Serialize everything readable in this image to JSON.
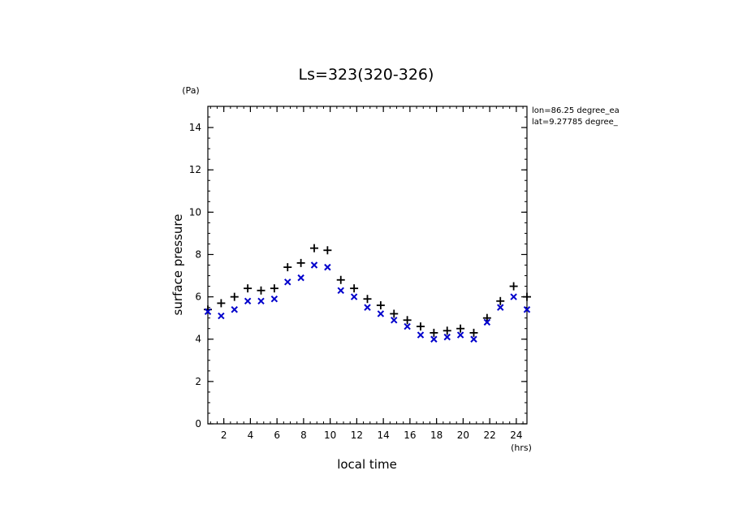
{
  "chart_data": {
    "type": "scatter",
    "title": "Ls=323(320-326)",
    "xlabel": "local time",
    "xunit": "(hrs)",
    "ylabel": "surface pressure",
    "yunit": "(Pa)",
    "xlim": [
      0.8,
      24.8
    ],
    "ylim": [
      0,
      15
    ],
    "xticks": [
      2,
      4,
      6,
      8,
      10,
      12,
      14,
      16,
      18,
      20,
      22,
      24
    ],
    "yticks": [
      0,
      2,
      4,
      6,
      8,
      10,
      12,
      14
    ],
    "annotations": [
      "lon=86.25 degree_ea",
      "lat=9.27785 degree_"
    ],
    "series": [
      {
        "marker": "plus",
        "color": "#000000",
        "x": [
          0.8,
          1.8,
          2.8,
          3.8,
          4.8,
          5.8,
          6.8,
          7.8,
          8.8,
          9.8,
          10.8,
          11.8,
          12.8,
          13.8,
          14.8,
          15.8,
          16.8,
          17.8,
          18.8,
          19.8,
          20.8,
          21.8,
          22.8,
          23.8,
          24.8
        ],
        "y": [
          5.4,
          5.7,
          6.0,
          6.4,
          6.3,
          6.4,
          7.4,
          7.6,
          8.3,
          8.2,
          6.8,
          6.4,
          5.9,
          5.6,
          5.2,
          4.9,
          4.6,
          4.3,
          4.4,
          4.5,
          4.3,
          5.0,
          5.8,
          6.5,
          6.0
        ]
      },
      {
        "marker": "cross",
        "color": "#0000cc",
        "x": [
          0.8,
          1.8,
          2.8,
          3.8,
          4.8,
          5.8,
          6.8,
          7.8,
          8.8,
          9.8,
          10.8,
          11.8,
          12.8,
          13.8,
          14.8,
          15.8,
          16.8,
          17.8,
          18.8,
          19.8,
          20.8,
          21.8,
          22.8,
          23.8,
          24.8
        ],
        "y": [
          5.3,
          5.1,
          5.4,
          5.8,
          5.8,
          5.9,
          6.7,
          6.9,
          7.5,
          7.4,
          6.3,
          6.0,
          5.5,
          5.2,
          4.9,
          4.6,
          4.2,
          4.0,
          4.1,
          4.2,
          4.0,
          4.8,
          5.5,
          6.0,
          5.4
        ]
      }
    ]
  }
}
